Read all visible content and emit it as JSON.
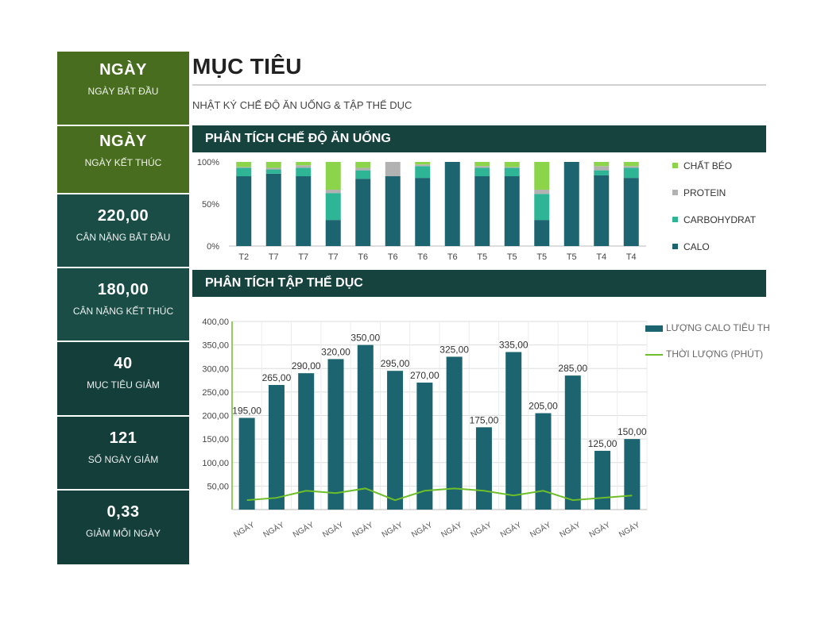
{
  "colors": {
    "green_dark": "#486D1F",
    "teal_dark": "#1B4D47",
    "teal_darker": "#133E3A",
    "banner": "#17433F",
    "calo": "#1B6470",
    "carbo": "#2DB596",
    "protein": "#B2B2B2",
    "fat": "#8CD44A",
    "bar": "#1B6470",
    "line": "#6EBE2A"
  },
  "sidebar": {
    "cards": [
      {
        "value": "NGÀY",
        "label": "NGÀY BẮT ĐẦU"
      },
      {
        "value": "NGÀY",
        "label": "NGÀY KẾT THÚC"
      },
      {
        "value": "220,00",
        "label": "CÂN NẶNG BẮT ĐẦU"
      },
      {
        "value": "180,00",
        "label": "CÂN NẶNG KẾT THÚC"
      },
      {
        "value": "40",
        "label": "MỤC TIÊU GIẢM"
      },
      {
        "value": "121",
        "label": "SỐ NGÀY GIẢM"
      },
      {
        "value": "0,33",
        "label": "GIẢM MỖI NGÀY"
      }
    ]
  },
  "header": {
    "title": "MỤC TIÊU",
    "subtitle": "NHẬT KÝ CHẾ ĐỘ ĂN UỐNG & TẬP THỂ DỤC"
  },
  "sections": {
    "diet": "PHÂN TÍCH CHẾ ĐỘ ĂN UỐNG",
    "exercise": "PHÂN TÍCH TẬP THỂ DỤC"
  },
  "chart_data": [
    {
      "type": "bar",
      "stacked": "percent",
      "title": "PHÂN TÍCH CHẾ ĐỘ ĂN UỐNG",
      "categories": [
        "T2",
        "T7",
        "T7",
        "T7",
        "T6",
        "T6",
        "T6",
        "T6",
        "T5",
        "T5",
        "T5",
        "T5",
        "T4",
        "T4"
      ],
      "y_ticks": [
        "0%",
        "50%",
        "100%"
      ],
      "series": [
        {
          "name": "CALO",
          "values": [
            83,
            86,
            83,
            31,
            80,
            83,
            81,
            100,
            83,
            83,
            31,
            100,
            84,
            81
          ]
        },
        {
          "name": "CARBOHYDRAT",
          "values": [
            10,
            5,
            10,
            32,
            10,
            0,
            14,
            0,
            10,
            10,
            31,
            0,
            6,
            12
          ]
        },
        {
          "name": "PROTEIN",
          "values": [
            1,
            2,
            3,
            4,
            3,
            17,
            2,
            0,
            2,
            1,
            5,
            0,
            5,
            2
          ]
        },
        {
          "name": "CHẤT BÉO",
          "values": [
            6,
            7,
            4,
            33,
            7,
            0,
            3,
            0,
            5,
            6,
            33,
            0,
            5,
            5
          ]
        }
      ],
      "legend_order": [
        "CHẤT BÉO",
        "PROTEIN",
        "CARBOHYDRAT",
        "CALO"
      ],
      "legend": "right"
    },
    {
      "type": "bar",
      "title": "PHÂN TÍCH TẬP THỂ DỤC",
      "categories": [
        "NGÀY",
        "NGÀY",
        "NGÀY",
        "NGÀY",
        "NGÀY",
        "NGÀY",
        "NGÀY",
        "NGÀY",
        "NGÀY",
        "NGÀY",
        "NGÀY",
        "NGÀY",
        "NGÀY",
        "NGÀY"
      ],
      "ylim": [
        0,
        400
      ],
      "y_ticks": [
        "50,00",
        "100,00",
        "150,00",
        "200,00",
        "250,00",
        "300,00",
        "350,00",
        "400,00"
      ],
      "series": [
        {
          "name": "LƯỢNG CALO TIÊU THỤ",
          "type": "bar",
          "values": [
            195,
            265,
            290,
            320,
            350,
            295,
            270,
            325,
            175,
            335,
            205,
            285,
            125,
            150
          ],
          "labels": [
            "195,00",
            "265,00",
            "290,00",
            "320,00",
            "350,00",
            "295,00",
            "270,00",
            "325,00",
            "175,00",
            "335,00",
            "205,00",
            "285,00",
            "125,00",
            "150,00"
          ]
        },
        {
          "name": "THỜI LƯỢNG (PHÚT)",
          "type": "line",
          "values": [
            20,
            25,
            40,
            35,
            45,
            20,
            40,
            45,
            40,
            30,
            40,
            20,
            25,
            30
          ]
        }
      ],
      "legend": "top-right",
      "grid": true
    }
  ]
}
